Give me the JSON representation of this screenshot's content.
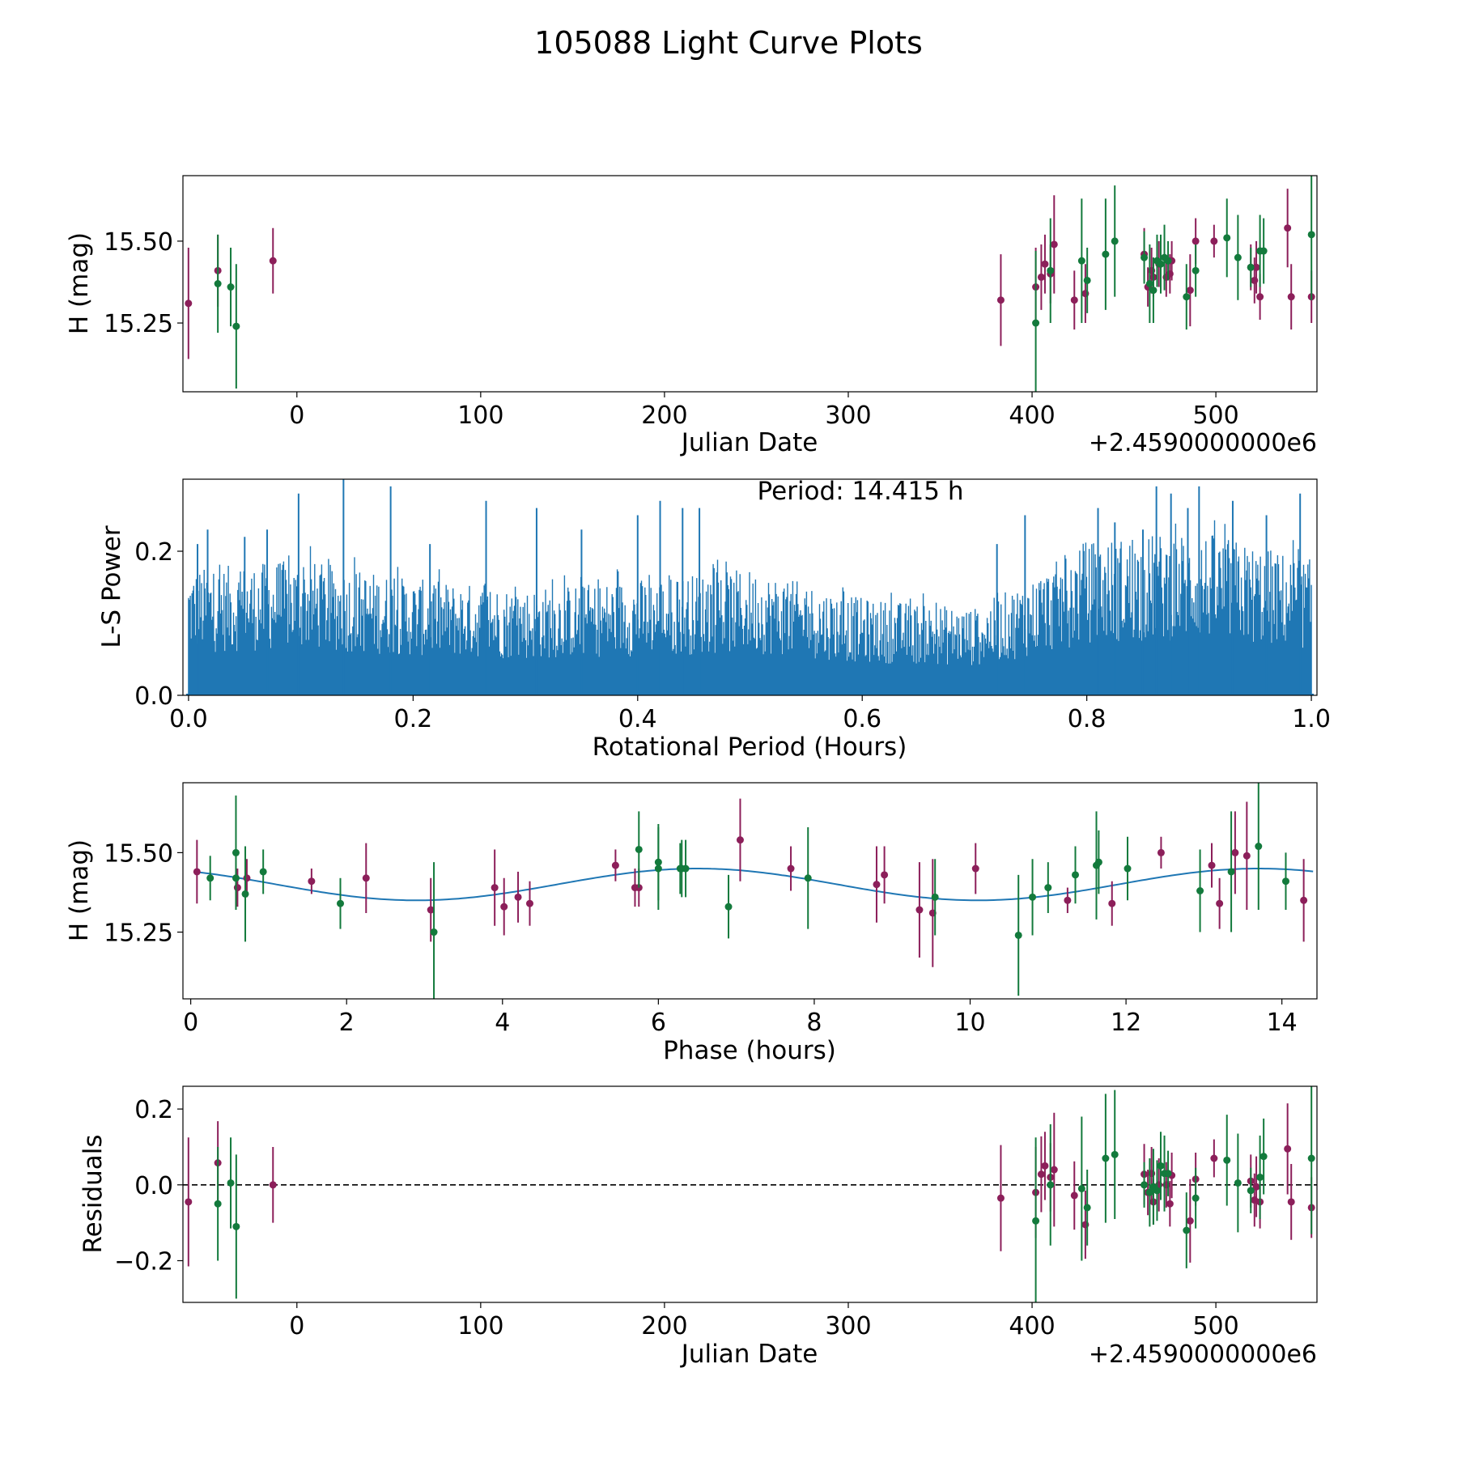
{
  "figure_title": "105088 Light Curve Plots",
  "colors": {
    "band_o": "#8c1f5a",
    "band_c": "#137a3c",
    "periodogram": "#1f77b4",
    "fit": "#1f77b4",
    "zero_line": "#000000"
  },
  "chart_data": [
    {
      "id": "lightcurve",
      "type": "scatter",
      "title": "",
      "xlabel": "Julian Date",
      "ylabel": "H (mag)",
      "offset_label": "+2.4590000000e6",
      "xlim": [
        -62,
        555
      ],
      "ylim": [
        15.04,
        15.7
      ],
      "xticks": [
        0,
        100,
        200,
        300,
        400,
        500
      ],
      "xtick_labels": [
        "0",
        "100",
        "200",
        "300",
        "400",
        "500"
      ],
      "yticks": [
        15.25,
        15.5
      ],
      "ytick_labels": [
        "15.25",
        "15.50"
      ],
      "series": [
        {
          "name": "band_o",
          "color": "#8c1f5a",
          "points": [
            [
              -59,
              15.31,
              0.17
            ],
            [
              -43,
              15.41,
              0.11
            ],
            [
              -13,
              15.44,
              0.1
            ],
            [
              383,
              15.32,
              0.14
            ],
            [
              402,
              15.36,
              0.12
            ],
            [
              405,
              15.39,
              0.1
            ],
            [
              407,
              15.43,
              0.09
            ],
            [
              410,
              15.4,
              0.09
            ],
            [
              412,
              15.49,
              0.15
            ],
            [
              423,
              15.32,
              0.09
            ],
            [
              429,
              15.34,
              0.09
            ],
            [
              461,
              15.46,
              0.08
            ],
            [
              463,
              15.36,
              0.06
            ],
            [
              465,
              15.41,
              0.07
            ],
            [
              466,
              15.39,
              0.06
            ],
            [
              469,
              15.43,
              0.07
            ],
            [
              473,
              15.39,
              0.06
            ],
            [
              475,
              15.4,
              0.06
            ],
            [
              476,
              15.44,
              0.06
            ],
            [
              486,
              15.35,
              0.11
            ],
            [
              489,
              15.5,
              0.07
            ],
            [
              499,
              15.5,
              0.05
            ],
            [
              519,
              15.42,
              0.07
            ],
            [
              521,
              15.38,
              0.07
            ],
            [
              522,
              15.42,
              0.08
            ],
            [
              524,
              15.33,
              0.07
            ],
            [
              539,
              15.54,
              0.12
            ],
            [
              541,
              15.33,
              0.1
            ],
            [
              552,
              15.33,
              0.08
            ]
          ]
        },
        {
          "name": "band_c",
          "color": "#137a3c",
          "points": [
            [
              -43,
              15.37,
              0.15
            ],
            [
              -36,
              15.36,
              0.12
            ],
            [
              -33,
              15.24,
              0.19
            ],
            [
              402,
              15.25,
              0.22
            ],
            [
              410,
              15.41,
              0.16
            ],
            [
              427,
              15.44,
              0.19
            ],
            [
              430,
              15.38,
              0.1
            ],
            [
              440,
              15.46,
              0.17
            ],
            [
              445,
              15.5,
              0.17
            ],
            [
              461,
              15.45,
              0.08
            ],
            [
              464,
              15.37,
              0.12
            ],
            [
              466,
              15.35,
              0.1
            ],
            [
              468,
              15.44,
              0.08
            ],
            [
              470,
              15.43,
              0.09
            ],
            [
              472,
              15.45,
              0.1
            ],
            [
              474,
              15.44,
              0.06
            ],
            [
              484,
              15.33,
              0.1
            ],
            [
              489,
              15.41,
              0.08
            ],
            [
              506,
              15.51,
              0.12
            ],
            [
              512,
              15.45,
              0.13
            ],
            [
              519,
              15.42,
              0.06
            ],
            [
              524,
              15.47,
              0.11
            ],
            [
              526,
              15.47,
              0.1
            ],
            [
              552,
              15.52,
              0.2
            ]
          ]
        }
      ]
    },
    {
      "id": "periodogram",
      "type": "line",
      "title": "Period: 14.415 h",
      "xlabel": "Rotational Period (Hours)",
      "ylabel": "L-S Power",
      "xlim": [
        -0.005,
        1.005
      ],
      "ylim": [
        0,
        0.3
      ],
      "xticks": [
        0.0,
        0.2,
        0.4,
        0.6,
        0.8,
        1.0
      ],
      "xtick_labels": [
        "0.0",
        "0.2",
        "0.4",
        "0.6",
        "0.8",
        "1.0"
      ],
      "yticks": [
        0.0,
        0.2
      ],
      "ytick_labels": [
        "0.0",
        "0.2"
      ],
      "x_start": 0.0,
      "x_end": 1.0,
      "sample_count": 1300,
      "envelope": [
        [
          0.0,
          0.13
        ],
        [
          0.1,
          0.14
        ],
        [
          0.2,
          0.12
        ],
        [
          0.3,
          0.11
        ],
        [
          0.4,
          0.12
        ],
        [
          0.5,
          0.13
        ],
        [
          0.6,
          0.1
        ],
        [
          0.7,
          0.09
        ],
        [
          0.75,
          0.12
        ],
        [
          0.8,
          0.16
        ],
        [
          0.9,
          0.17
        ],
        [
          1.0,
          0.14
        ]
      ],
      "peaks": [
        [
          0.008,
          0.21
        ],
        [
          0.017,
          0.23
        ],
        [
          0.05,
          0.22
        ],
        [
          0.07,
          0.23
        ],
        [
          0.098,
          0.28
        ],
        [
          0.138,
          0.3
        ],
        [
          0.18,
          0.29
        ],
        [
          0.215,
          0.21
        ],
        [
          0.265,
          0.27
        ],
        [
          0.31,
          0.26
        ],
        [
          0.35,
          0.23
        ],
        [
          0.4,
          0.25
        ],
        [
          0.42,
          0.27
        ],
        [
          0.44,
          0.26
        ],
        [
          0.455,
          0.26
        ],
        [
          0.72,
          0.21
        ],
        [
          0.745,
          0.25
        ],
        [
          0.81,
          0.26
        ],
        [
          0.825,
          0.24
        ],
        [
          0.85,
          0.23
        ],
        [
          0.862,
          0.29
        ],
        [
          0.875,
          0.28
        ],
        [
          0.89,
          0.26
        ],
        [
          0.9,
          0.29
        ],
        [
          0.93,
          0.27
        ],
        [
          0.96,
          0.25
        ],
        [
          0.99,
          0.28
        ]
      ]
    },
    {
      "id": "phased",
      "type": "scatter",
      "title": "",
      "xlabel": "Phase (hours)",
      "ylabel": "H (mag)",
      "xlim": [
        -0.1,
        14.45
      ],
      "ylim": [
        15.04,
        15.72
      ],
      "xticks": [
        0,
        2,
        4,
        6,
        8,
        10,
        12,
        14
      ],
      "xtick_labels": [
        "0",
        "2",
        "4",
        "6",
        "8",
        "10",
        "12",
        "14"
      ],
      "yticks": [
        15.25,
        15.5
      ],
      "ytick_labels": [
        "15.25",
        "15.50"
      ],
      "fit": {
        "mean": 15.4,
        "amplitude": 0.05,
        "period": 7.2,
        "peak_phase": 6.5
      },
      "series": [
        {
          "name": "band_o",
          "color": "#8c1f5a",
          "points": [
            [
              0.08,
              15.44,
              0.1
            ],
            [
              0.6,
              15.39,
              0.06
            ],
            [
              0.72,
              15.42,
              0.06
            ],
            [
              1.55,
              15.41,
              0.04
            ],
            [
              2.25,
              15.42,
              0.11
            ],
            [
              3.08,
              15.32,
              0.1
            ],
            [
              3.9,
              15.39,
              0.12
            ],
            [
              4.02,
              15.33,
              0.09
            ],
            [
              4.2,
              15.36,
              0.08
            ],
            [
              4.35,
              15.34,
              0.07
            ],
            [
              5.45,
              15.46,
              0.05
            ],
            [
              5.7,
              15.39,
              0.06
            ],
            [
              5.75,
              15.39,
              0.06
            ],
            [
              7.05,
              15.54,
              0.13
            ],
            [
              7.7,
              15.45,
              0.07
            ],
            [
              8.8,
              15.4,
              0.12
            ],
            [
              8.9,
              15.43,
              0.09
            ],
            [
              9.35,
              15.32,
              0.15
            ],
            [
              9.52,
              15.31,
              0.17
            ],
            [
              10.07,
              15.45,
              0.08
            ],
            [
              11.25,
              15.35,
              0.04
            ],
            [
              11.82,
              15.34,
              0.07
            ],
            [
              12.45,
              15.5,
              0.05
            ],
            [
              13.1,
              15.46,
              0.07
            ],
            [
              13.2,
              15.34,
              0.08
            ],
            [
              13.4,
              15.5,
              0.13
            ],
            [
              13.55,
              15.49,
              0.17
            ],
            [
              14.28,
              15.35,
              0.13
            ]
          ]
        },
        {
          "name": "band_c",
          "color": "#137a3c",
          "points": [
            [
              0.25,
              15.42,
              0.07
            ],
            [
              0.58,
              15.5,
              0.18
            ],
            [
              0.58,
              15.42,
              0.09
            ],
            [
              0.7,
              15.37,
              0.15
            ],
            [
              0.93,
              15.44,
              0.07
            ],
            [
              1.92,
              15.34,
              0.08
            ],
            [
              3.12,
              15.25,
              0.22
            ],
            [
              5.75,
              15.51,
              0.12
            ],
            [
              6.0,
              15.45,
              0.13
            ],
            [
              6.0,
              15.47,
              0.12
            ],
            [
              6.28,
              15.45,
              0.08
            ],
            [
              6.3,
              15.45,
              0.09
            ],
            [
              6.35,
              15.45,
              0.09
            ],
            [
              6.9,
              15.33,
              0.1
            ],
            [
              7.92,
              15.42,
              0.16
            ],
            [
              9.55,
              15.36,
              0.12
            ],
            [
              10.62,
              15.24,
              0.19
            ],
            [
              10.8,
              15.36,
              0.12
            ],
            [
              11.0,
              15.39,
              0.08
            ],
            [
              11.35,
              15.43,
              0.09
            ],
            [
              11.62,
              15.46,
              0.17
            ],
            [
              11.65,
              15.47,
              0.1
            ],
            [
              12.02,
              15.45,
              0.1
            ],
            [
              12.95,
              15.38,
              0.13
            ],
            [
              13.35,
              15.44,
              0.19
            ],
            [
              13.7,
              15.52,
              0.2
            ],
            [
              14.05,
              15.41,
              0.09
            ]
          ]
        }
      ]
    },
    {
      "id": "residuals",
      "type": "scatter",
      "title": "",
      "xlabel": "Julian Date",
      "ylabel": "Residuals",
      "offset_label": "+2.4590000000e6",
      "xlim": [
        -62,
        555
      ],
      "ylim": [
        -0.31,
        0.26
      ],
      "xticks": [
        0,
        100,
        200,
        300,
        400,
        500
      ],
      "xtick_labels": [
        "0",
        "100",
        "200",
        "300",
        "400",
        "500"
      ],
      "yticks": [
        -0.2,
        0.0,
        0.2
      ],
      "ytick_labels": [
        "−0.2",
        "0.0",
        "0.2"
      ],
      "zero_line": 0.0,
      "series": [
        {
          "name": "band_o",
          "color": "#8c1f5a",
          "points": [
            [
              -59,
              -0.045,
              0.17
            ],
            [
              -43,
              0.058,
              0.11
            ],
            [
              -13,
              0.0,
              0.1
            ],
            [
              383,
              -0.035,
              0.14
            ],
            [
              402,
              -0.02,
              0.12
            ],
            [
              405,
              0.028,
              0.1
            ],
            [
              407,
              0.05,
              0.09
            ],
            [
              410,
              0.02,
              0.09
            ],
            [
              412,
              0.04,
              0.15
            ],
            [
              423,
              -0.028,
              0.09
            ],
            [
              429,
              -0.105,
              0.09
            ],
            [
              461,
              0.028,
              0.08
            ],
            [
              463,
              -0.02,
              0.06
            ],
            [
              465,
              0.03,
              0.07
            ],
            [
              466,
              -0.045,
              0.06
            ],
            [
              469,
              0.0,
              0.07
            ],
            [
              473,
              0.0,
              0.06
            ],
            [
              475,
              -0.05,
              0.06
            ],
            [
              476,
              0.025,
              0.06
            ],
            [
              486,
              -0.095,
              0.11
            ],
            [
              489,
              0.015,
              0.07
            ],
            [
              499,
              0.07,
              0.05
            ],
            [
              519,
              0.01,
              0.07
            ],
            [
              521,
              -0.04,
              0.07
            ],
            [
              522,
              -0.005,
              0.08
            ],
            [
              524,
              -0.045,
              0.07
            ],
            [
              539,
              0.095,
              0.12
            ],
            [
              541,
              -0.045,
              0.1
            ],
            [
              552,
              -0.06,
              0.08
            ]
          ]
        },
        {
          "name": "band_c",
          "color": "#137a3c",
          "points": [
            [
              -43,
              -0.05,
              0.15
            ],
            [
              -36,
              0.005,
              0.12
            ],
            [
              -33,
              -0.11,
              0.19
            ],
            [
              402,
              -0.095,
              0.22
            ],
            [
              410,
              0.0,
              0.16
            ],
            [
              427,
              -0.01,
              0.19
            ],
            [
              430,
              -0.06,
              0.1
            ],
            [
              440,
              0.07,
              0.17
            ],
            [
              445,
              0.08,
              0.17
            ],
            [
              461,
              0.0,
              0.06
            ],
            [
              464,
              -0.02,
              0.09
            ],
            [
              466,
              -0.005,
              0.1
            ],
            [
              468,
              -0.015,
              0.08
            ],
            [
              470,
              0.05,
              0.09
            ],
            [
              472,
              0.03,
              0.1
            ],
            [
              474,
              0.03,
              0.06
            ],
            [
              484,
              -0.12,
              0.1
            ],
            [
              489,
              -0.035,
              0.08
            ],
            [
              506,
              0.065,
              0.12
            ],
            [
              512,
              0.005,
              0.13
            ],
            [
              519,
              -0.015,
              0.06
            ],
            [
              524,
              0.02,
              0.11
            ],
            [
              526,
              0.075,
              0.1
            ],
            [
              552,
              0.07,
              0.2
            ]
          ]
        }
      ]
    }
  ]
}
